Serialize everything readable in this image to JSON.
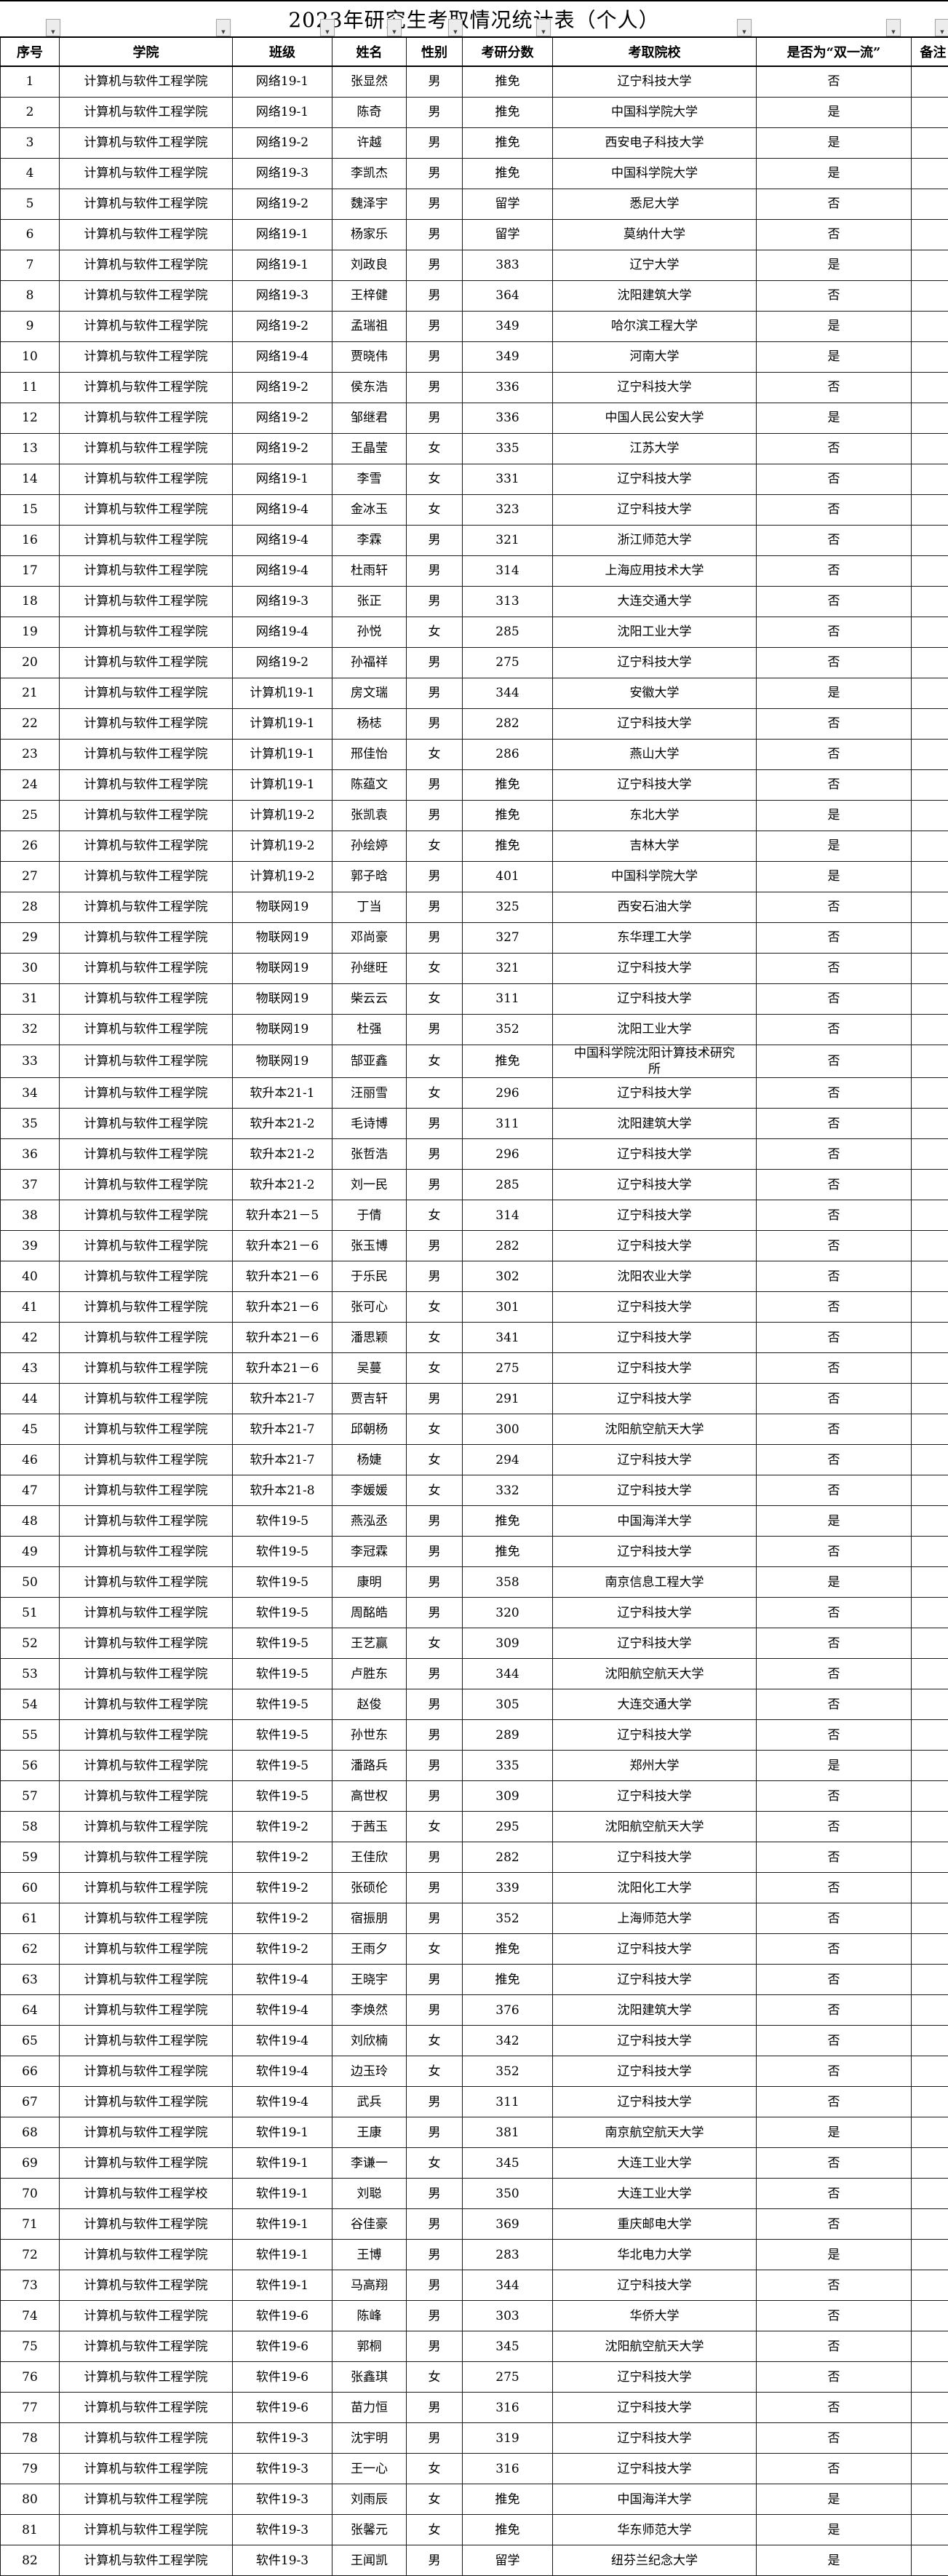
{
  "title": "2023年研究生考取情况统计表（个人）",
  "columns": [
    {
      "key": "index",
      "label": "序号"
    },
    {
      "key": "college",
      "label": "学院"
    },
    {
      "key": "class",
      "label": "班级"
    },
    {
      "key": "name",
      "label": "姓名"
    },
    {
      "key": "gender",
      "label": "性别"
    },
    {
      "key": "score",
      "label": "考研分数"
    },
    {
      "key": "school",
      "label": "考取院校"
    },
    {
      "key": "dfc",
      "label": "是否为“双一流”"
    },
    {
      "key": "remark",
      "label": "备注"
    }
  ],
  "filter_buttons": {
    "arrow_glyph": "▼",
    "positions": [
      63,
      297,
      440,
      532,
      616,
      737,
      1013,
      1218,
      1285
    ]
  },
  "colors": {
    "border": "#1a1a1a",
    "button_bg": "#ececec",
    "button_border": "#a6a6a6",
    "text": "#000000",
    "background": "#ffffff"
  },
  "rows": [
    [
      "1",
      "计算机与软件工程学院",
      "网络19-1",
      "张显然",
      "男",
      "推免",
      "辽宁科技大学",
      "否",
      ""
    ],
    [
      "2",
      "计算机与软件工程学院",
      "网络19-1",
      "陈奇",
      "男",
      "推免",
      "中国科学院大学",
      "是",
      ""
    ],
    [
      "3",
      "计算机与软件工程学院",
      "网络19-2",
      "许越",
      "男",
      "推免",
      "西安电子科技大学",
      "是",
      ""
    ],
    [
      "4",
      "计算机与软件工程学院",
      "网络19-3",
      "李凯杰",
      "男",
      "推免",
      "中国科学院大学",
      "是",
      ""
    ],
    [
      "5",
      "计算机与软件工程学院",
      "网络19-2",
      "魏泽宇",
      "男",
      "留学",
      "悉尼大学",
      "否",
      ""
    ],
    [
      "6",
      "计算机与软件工程学院",
      "网络19-1",
      "杨家乐",
      "男",
      "留学",
      "莫纳什大学",
      "否",
      ""
    ],
    [
      "7",
      "计算机与软件工程学院",
      "网络19-1",
      "刘政良",
      "男",
      "383",
      "辽宁大学",
      "是",
      ""
    ],
    [
      "8",
      "计算机与软件工程学院",
      "网络19-3",
      "王梓健",
      "男",
      "364",
      "沈阳建筑大学",
      "否",
      ""
    ],
    [
      "9",
      "计算机与软件工程学院",
      "网络19-2",
      "孟瑞祖",
      "男",
      "349",
      "哈尔滨工程大学",
      "是",
      ""
    ],
    [
      "10",
      "计算机与软件工程学院",
      "网络19-4",
      "贾晓伟",
      "男",
      "349",
      "河南大学",
      "是",
      ""
    ],
    [
      "11",
      "计算机与软件工程学院",
      "网络19-2",
      "侯东浩",
      "男",
      "336",
      "辽宁科技大学",
      "否",
      ""
    ],
    [
      "12",
      "计算机与软件工程学院",
      "网络19-2",
      "邹继君",
      "男",
      "336",
      "中国人民公安大学",
      "是",
      ""
    ],
    [
      "13",
      "计算机与软件工程学院",
      "网络19-2",
      "王晶莹",
      "女",
      "335",
      "江苏大学",
      "否",
      ""
    ],
    [
      "14",
      "计算机与软件工程学院",
      "网络19-1",
      "李雪",
      "女",
      "331",
      "辽宁科技大学",
      "否",
      ""
    ],
    [
      "15",
      "计算机与软件工程学院",
      "网络19-4",
      "金冰玉",
      "女",
      "323",
      "辽宁科技大学",
      "否",
      ""
    ],
    [
      "16",
      "计算机与软件工程学院",
      "网络19-4",
      "李霖",
      "男",
      "321",
      "浙江师范大学",
      "否",
      ""
    ],
    [
      "17",
      "计算机与软件工程学院",
      "网络19-4",
      "杜雨轩",
      "男",
      "314",
      "上海应用技术大学",
      "否",
      ""
    ],
    [
      "18",
      "计算机与软件工程学院",
      "网络19-3",
      "张正",
      "男",
      "313",
      "大连交通大学",
      "否",
      ""
    ],
    [
      "19",
      "计算机与软件工程学院",
      "网络19-4",
      "孙悦",
      "女",
      "285",
      "沈阳工业大学",
      "否",
      ""
    ],
    [
      "20",
      "计算机与软件工程学院",
      "网络19-2",
      "孙福祥",
      "男",
      "275",
      "辽宁科技大学",
      "否",
      ""
    ],
    [
      "21",
      "计算机与软件工程学院",
      "计算机19-1",
      "房文瑞",
      "男",
      "344",
      "安徽大学",
      "是",
      ""
    ],
    [
      "22",
      "计算机与软件工程学院",
      "计算机19-1",
      "杨梽",
      "男",
      "282",
      "辽宁科技大学",
      "否",
      ""
    ],
    [
      "23",
      "计算机与软件工程学院",
      "计算机19-1",
      "邢佳怡",
      "女",
      "286",
      "燕山大学",
      "否",
      ""
    ],
    [
      "24",
      "计算机与软件工程学院",
      "计算机19-1",
      "陈蕴文",
      "男",
      "推免",
      "辽宁科技大学",
      "否",
      ""
    ],
    [
      "25",
      "计算机与软件工程学院",
      "计算机19-2",
      "张凯袁",
      "男",
      "推免",
      "东北大学",
      "是",
      ""
    ],
    [
      "26",
      "计算机与软件工程学院",
      "计算机19-2",
      "孙绘婷",
      "女",
      "推免",
      "吉林大学",
      "是",
      ""
    ],
    [
      "27",
      "计算机与软件工程学院",
      "计算机19-2",
      "郭子晗",
      "男",
      "401",
      "中国科学院大学",
      "是",
      ""
    ],
    [
      "28",
      "计算机与软件工程学院",
      "物联网19",
      "丁当",
      "男",
      "325",
      "西安石油大学",
      "否",
      ""
    ],
    [
      "29",
      "计算机与软件工程学院",
      "物联网19",
      "邓尚豪",
      "男",
      "327",
      "东华理工大学",
      "否",
      ""
    ],
    [
      "30",
      "计算机与软件工程学院",
      "物联网19",
      "孙继旺",
      "女",
      "321",
      "辽宁科技大学",
      "否",
      ""
    ],
    [
      "31",
      "计算机与软件工程学院",
      "物联网19",
      "柴云云",
      "女",
      "311",
      "辽宁科技大学",
      "否",
      ""
    ],
    [
      "32",
      "计算机与软件工程学院",
      "物联网19",
      "杜强",
      "男",
      "352",
      "沈阳工业大学",
      "否",
      ""
    ],
    [
      "33",
      "计算机与软件工程学院",
      "物联网19",
      "郜亚鑫",
      "女",
      "推免",
      "中国科学院沈阳计算技术研究所",
      "否",
      ""
    ],
    [
      "34",
      "计算机与软件工程学院",
      "软升本21-1",
      "汪丽雪",
      "女",
      "296",
      "辽宁科技大学",
      "否",
      ""
    ],
    [
      "35",
      "计算机与软件工程学院",
      "软升本21-2",
      "毛诗博",
      "男",
      "311",
      "沈阳建筑大学",
      "否",
      ""
    ],
    [
      "36",
      "计算机与软件工程学院",
      "软升本21-2",
      "张哲浩",
      "男",
      "296",
      "辽宁科技大学",
      "否",
      ""
    ],
    [
      "37",
      "计算机与软件工程学院",
      "软升本21-2",
      "刘一民",
      "男",
      "285",
      "辽宁科技大学",
      "否",
      ""
    ],
    [
      "38",
      "计算机与软件工程学院",
      "软升本21－5",
      "于倩",
      "女",
      "314",
      "辽宁科技大学",
      "否",
      ""
    ],
    [
      "39",
      "计算机与软件工程学院",
      "软升本21－6",
      "张玉博",
      "男",
      "282",
      "辽宁科技大学",
      "否",
      ""
    ],
    [
      "40",
      "计算机与软件工程学院",
      "软升本21－6",
      "于乐民",
      "男",
      "302",
      "沈阳农业大学",
      "否",
      ""
    ],
    [
      "41",
      "计算机与软件工程学院",
      "软升本21－6",
      "张可心",
      "女",
      "301",
      "辽宁科技大学",
      "否",
      ""
    ],
    [
      "42",
      "计算机与软件工程学院",
      "软升本21－6",
      "潘思颖",
      "女",
      "341",
      "辽宁科技大学",
      "否",
      ""
    ],
    [
      "43",
      "计算机与软件工程学院",
      "软升本21－6",
      "吴蔓",
      "女",
      "275",
      "辽宁科技大学",
      "否",
      ""
    ],
    [
      "44",
      "计算机与软件工程学院",
      "软升本21-7",
      "贾吉轩",
      "男",
      "291",
      "辽宁科技大学",
      "否",
      ""
    ],
    [
      "45",
      "计算机与软件工程学院",
      "软升本21-7",
      "邱朝杨",
      "女",
      "300",
      "沈阳航空航天大学",
      "否",
      ""
    ],
    [
      "46",
      "计算机与软件工程学院",
      "软升本21-7",
      "杨婕",
      "女",
      "294",
      "辽宁科技大学",
      "否",
      ""
    ],
    [
      "47",
      "计算机与软件工程学院",
      "软升本21-8",
      "李媛媛",
      "女",
      "332",
      "辽宁科技大学",
      "否",
      ""
    ],
    [
      "48",
      "计算机与软件工程学院",
      "软件19-5",
      "燕泓丞",
      "男",
      "推免",
      "中国海洋大学",
      "是",
      ""
    ],
    [
      "49",
      "计算机与软件工程学院",
      "软件19-5",
      "李冠霖",
      "男",
      "推免",
      "辽宁科技大学",
      "否",
      ""
    ],
    [
      "50",
      "计算机与软件工程学院",
      "软件19-5",
      "康明",
      "男",
      "358",
      "南京信息工程大学",
      "是",
      ""
    ],
    [
      "51",
      "计算机与软件工程学院",
      "软件19-5",
      "周酩皓",
      "男",
      "320",
      "辽宁科技大学",
      "否",
      ""
    ],
    [
      "52",
      "计算机与软件工程学院",
      "软件19-5",
      "王艺赢",
      "女",
      "309",
      "辽宁科技大学",
      "否",
      ""
    ],
    [
      "53",
      "计算机与软件工程学院",
      "软件19-5",
      "卢胜东",
      "男",
      "344",
      "沈阳航空航天大学",
      "否",
      ""
    ],
    [
      "54",
      "计算机与软件工程学院",
      "软件19-5",
      "赵俊",
      "男",
      "305",
      "大连交通大学",
      "否",
      ""
    ],
    [
      "55",
      "计算机与软件工程学院",
      "软件19-5",
      "孙世东",
      "男",
      "289",
      "辽宁科技大学",
      "否",
      ""
    ],
    [
      "56",
      "计算机与软件工程学院",
      "软件19-5",
      "潘路兵",
      "男",
      "335",
      "郑州大学",
      "是",
      ""
    ],
    [
      "57",
      "计算机与软件工程学院",
      "软件19-5",
      "高世权",
      "男",
      "309",
      "辽宁科技大学",
      "否",
      ""
    ],
    [
      "58",
      "计算机与软件工程学院",
      "软件19-2",
      "于茜玉",
      "女",
      "295",
      "沈阳航空航天大学",
      "否",
      ""
    ],
    [
      "59",
      "计算机与软件工程学院",
      "软件19-2",
      "王佳欣",
      "男",
      "282",
      "辽宁科技大学",
      "否",
      ""
    ],
    [
      "60",
      "计算机与软件工程学院",
      "软件19-2",
      "张硕伦",
      "男",
      "339",
      "沈阳化工大学",
      "否",
      ""
    ],
    [
      "61",
      "计算机与软件工程学院",
      "软件19-2",
      "宿振朋",
      "男",
      "352",
      "上海师范大学",
      "否",
      ""
    ],
    [
      "62",
      "计算机与软件工程学院",
      "软件19-2",
      "王雨夕",
      "女",
      "推免",
      "辽宁科技大学",
      "否",
      ""
    ],
    [
      "63",
      "计算机与软件工程学院",
      "软件19-4",
      "王晓宇",
      "男",
      "推免",
      "辽宁科技大学",
      "否",
      ""
    ],
    [
      "64",
      "计算机与软件工程学院",
      "软件19-4",
      "李焕然",
      "男",
      "376",
      "沈阳建筑大学",
      "否",
      ""
    ],
    [
      "65",
      "计算机与软件工程学院",
      "软件19-4",
      "刘欣楠",
      "女",
      "342",
      "辽宁科技大学",
      "否",
      ""
    ],
    [
      "66",
      "计算机与软件工程学院",
      "软件19-4",
      "边玉玲",
      "女",
      "352",
      "辽宁科技大学",
      "否",
      ""
    ],
    [
      "67",
      "计算机与软件工程学院",
      "软件19-4",
      "武兵",
      "男",
      "311",
      "辽宁科技大学",
      "否",
      ""
    ],
    [
      "68",
      "计算机与软件工程学院",
      "软件19-1",
      "王康",
      "男",
      "381",
      "南京航空航天大学",
      "是",
      ""
    ],
    [
      "69",
      "计算机与软件工程学院",
      "软件19-1",
      "李谦一",
      "女",
      "345",
      "大连工业大学",
      "否",
      ""
    ],
    [
      "70",
      "计算机与软件工程学校",
      "软件19-1",
      "刘聪",
      "男",
      "350",
      "大连工业大学",
      "否",
      ""
    ],
    [
      "71",
      "计算机与软件工程学院",
      "软件19-1",
      "谷佳豪",
      "男",
      "369",
      "重庆邮电大学",
      "否",
      ""
    ],
    [
      "72",
      "计算机与软件工程学院",
      "软件19-1",
      "王博",
      "男",
      "283",
      "华北电力大学",
      "是",
      ""
    ],
    [
      "73",
      "计算机与软件工程学院",
      "软件19-1",
      "马高翔",
      "男",
      "344",
      "辽宁科技大学",
      "否",
      ""
    ],
    [
      "74",
      "计算机与软件工程学院",
      "软件19-6",
      "陈峰",
      "男",
      "303",
      "华侨大学",
      "否",
      ""
    ],
    [
      "75",
      "计算机与软件工程学院",
      "软件19-6",
      "郭桐",
      "男",
      "345",
      "沈阳航空航天大学",
      "否",
      ""
    ],
    [
      "76",
      "计算机与软件工程学院",
      "软件19-6",
      "张鑫琪",
      "女",
      "275",
      "辽宁科技大学",
      "否",
      ""
    ],
    [
      "77",
      "计算机与软件工程学院",
      "软件19-6",
      "苗力恒",
      "男",
      "316",
      "辽宁科技大学",
      "否",
      ""
    ],
    [
      "78",
      "计算机与软件工程学院",
      "软件19-3",
      "沈宇明",
      "男",
      "319",
      "辽宁科技大学",
      "否",
      ""
    ],
    [
      "79",
      "计算机与软件工程学院",
      "软件19-3",
      "王一心",
      "女",
      "316",
      "辽宁科技大学",
      "否",
      ""
    ],
    [
      "80",
      "计算机与软件工程学院",
      "软件19-3",
      "刘雨辰",
      "女",
      "推免",
      "中国海洋大学",
      "是",
      ""
    ],
    [
      "81",
      "计算机与软件工程学院",
      "软件19-3",
      "张馨元",
      "女",
      "推免",
      "华东师范大学",
      "是",
      ""
    ],
    [
      "82",
      "计算机与软件工程学院",
      "软件19-3",
      "王闻凯",
      "男",
      "留学",
      "纽芬兰纪念大学",
      "是",
      ""
    ]
  ]
}
